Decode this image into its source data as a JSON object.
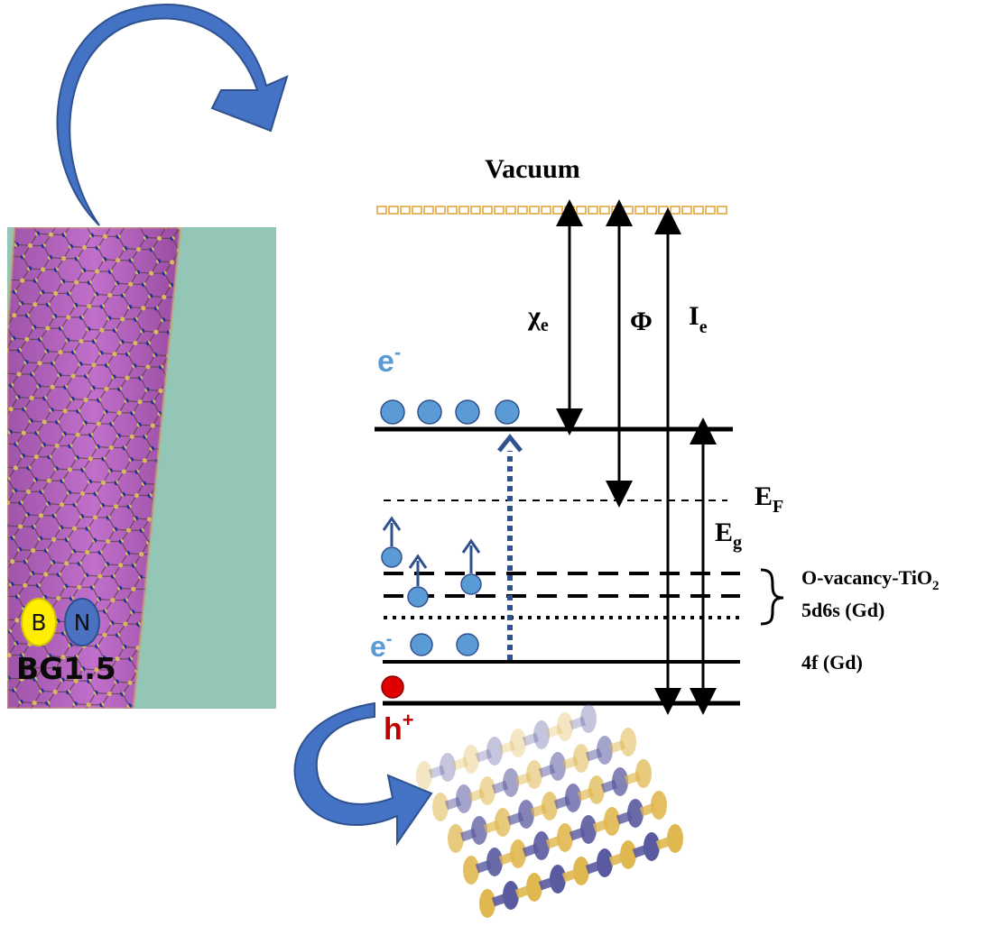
{
  "diagram": {
    "vacuum_label": "Vacuum",
    "chi_label": "χ",
    "chi_sub": "e",
    "phi_label": "Φ",
    "ionization_label": "I",
    "ionization_sub": "e",
    "electron_top_label": "e",
    "electron_top_sup": "-",
    "electron_bottom_label": "e",
    "electron_bottom_sup": "-",
    "fermi_label": "E",
    "fermi_sub": "F",
    "gap_label": "E",
    "gap_sub": "g",
    "defect_label_1": "O-vacancy-TiO",
    "defect_label_1_sub": "2",
    "defect_label_2": "5d6s (Gd)",
    "level_4f_label": "4f (Gd)",
    "hole_label": "h",
    "hole_sup": "+"
  },
  "nanotube": {
    "legend_b": "B",
    "legend_n": "N",
    "sample_label": "BG1.5"
  },
  "colors": {
    "arrow_blue": "#4472c4",
    "electron_blue": "#5b9bd5",
    "hole_red": "#e00000",
    "vacuum_orange": "#e0a030",
    "tube_magenta": "#b45cc0",
    "tube_bg": "#93c6b6",
    "boron_gold": "#d8b860",
    "nitrogen_blue": "#1f2fa0"
  }
}
